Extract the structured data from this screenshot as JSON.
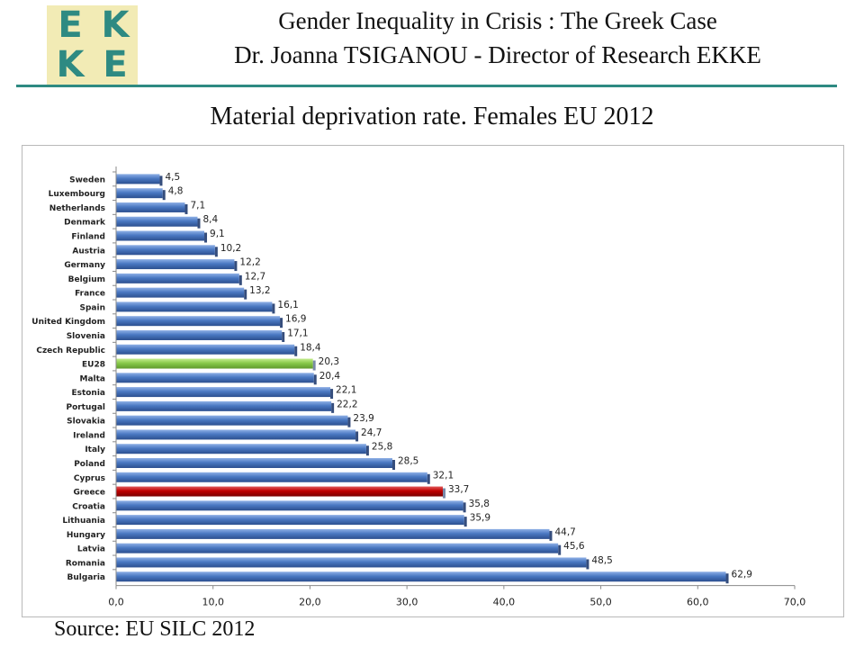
{
  "logo": {
    "letters": [
      "E",
      "K",
      "K",
      "E"
    ]
  },
  "header": {
    "title": "Gender Inequality in Crisis : The Greek Case",
    "subtitle": "Dr. Joanna TSIGANOU - Director of Research EKKE"
  },
  "colors": {
    "bar_default": "#4a78c2",
    "bar_eu28": "#88c94a",
    "bar_greece": "#c00000",
    "accent": "#2e8a82"
  },
  "chart_data": {
    "type": "bar",
    "orientation": "horizontal",
    "title": "Material deprivation rate. Females EU 2012",
    "categories": [
      "Sweden",
      "Luxembourg",
      "Netherlands",
      "Denmark",
      "Finland",
      "Austria",
      "Germany",
      "Belgium",
      "France",
      "Spain",
      "United Kingdom",
      "Slovenia",
      "Czech Republic",
      "EU28",
      "Malta",
      "Estonia",
      "Portugal",
      "Slovakia",
      "Ireland",
      "Italy",
      "Poland",
      "Cyprus",
      "Greece",
      "Croatia",
      "Lithuania",
      "Hungary",
      "Latvia",
      "Romania",
      "Bulgaria"
    ],
    "values": [
      4.5,
      4.8,
      7.1,
      8.4,
      9.1,
      10.2,
      12.2,
      12.7,
      13.2,
      16.1,
      16.9,
      17.1,
      18.4,
      20.3,
      20.4,
      22.1,
      22.2,
      23.9,
      24.7,
      25.8,
      28.5,
      32.1,
      33.7,
      35.8,
      35.9,
      44.7,
      45.6,
      48.5,
      62.9
    ],
    "value_labels": [
      "4,5",
      "4,8",
      "7,1",
      "8,4",
      "9,1",
      "10,2",
      "12,2",
      "12,7",
      "13,2",
      "16,1",
      "16,9",
      "17,1",
      "18,4",
      "20,3",
      "20,4",
      "22,1",
      "22,2",
      "23,9",
      "24,7",
      "25,8",
      "28,5",
      "32,1",
      "33,7",
      "35,8",
      "35,9",
      "44,7",
      "45,6",
      "48,5",
      "62,9"
    ],
    "highlights": {
      "EU28": "bar_eu28",
      "Greece": "bar_greece"
    },
    "xlim": [
      0,
      70
    ],
    "xticks": [
      0,
      10,
      20,
      30,
      40,
      50,
      60,
      70
    ],
    "xtick_labels": [
      "0,0",
      "10,0",
      "20,0",
      "30,0",
      "40,0",
      "50,0",
      "60,0",
      "70,0"
    ],
    "xlabel": "",
    "ylabel": "",
    "grid": false,
    "legend": "none"
  },
  "source": "Source: EU SILC 2012"
}
